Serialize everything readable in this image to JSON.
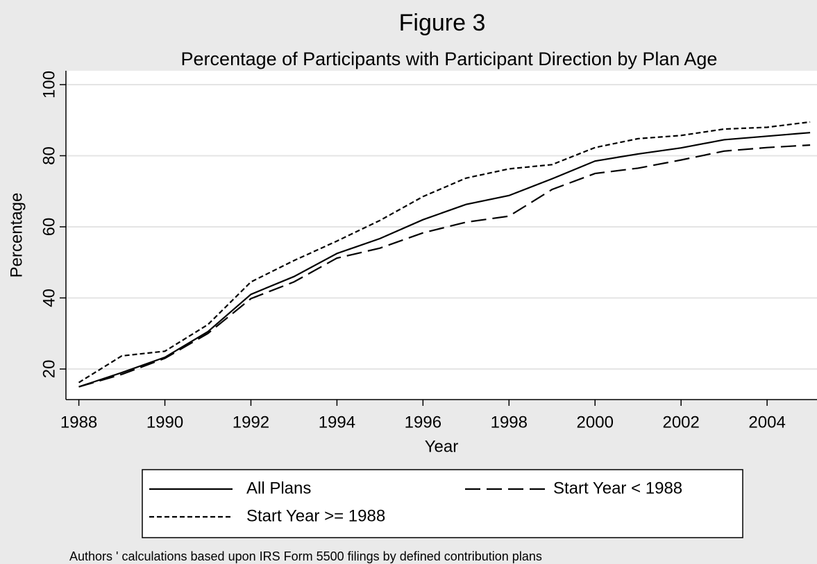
{
  "chart_data": {
    "type": "line",
    "title": "Figure 3",
    "subtitle": "Percentage of Participants with Participant Direction by Plan Age",
    "x_label": "Year",
    "y_label": "Percentage",
    "note": "Authors ' calculations based upon IRS Form 5500 filings by defined contribution plans",
    "x": [
      1988,
      1989,
      1990,
      1991,
      1992,
      1993,
      1994,
      1995,
      1996,
      1997,
      1998,
      1999,
      2000,
      2001,
      2002,
      2003,
      2004,
      2005
    ],
    "series": [
      {
        "name": "All Plans",
        "color": "#000000",
        "line_style": "solid",
        "values": [
          15,
          19,
          23.3,
          30.5,
          41,
          46,
          52.5,
          56.7,
          62,
          66.3,
          68.8,
          73.5,
          78.5,
          80.5,
          82.2,
          84.5,
          85.5,
          86.5
        ]
      },
      {
        "name": "Start Year < 1988",
        "color": "#000000",
        "line_style": "long-dash",
        "values": [
          15,
          18.5,
          23,
          30,
          39.8,
          44.5,
          51.2,
          54,
          58.3,
          61.3,
          63,
          70.5,
          75,
          76.5,
          78.8,
          81.3,
          82.3,
          83
        ]
      },
      {
        "name": "Start Year >= 1988",
        "color": "#000000",
        "line_style": "short-dash",
        "values": [
          16.2,
          23.7,
          25,
          32.5,
          44.5,
          50.5,
          56,
          61.8,
          68.5,
          73.7,
          76.3,
          77.5,
          82.3,
          84.8,
          85.7,
          87.5,
          88,
          89.5
        ]
      }
    ],
    "xlim": [
      1987.7,
      2005.16
    ],
    "xticks": [
      1988,
      1990,
      1992,
      1994,
      1996,
      1998,
      2000,
      2002,
      2004
    ],
    "ylim": [
      11.4,
      103.9
    ],
    "yticks": [
      20,
      40,
      60,
      80,
      100
    ],
    "grid": true,
    "legend": "bottom"
  }
}
